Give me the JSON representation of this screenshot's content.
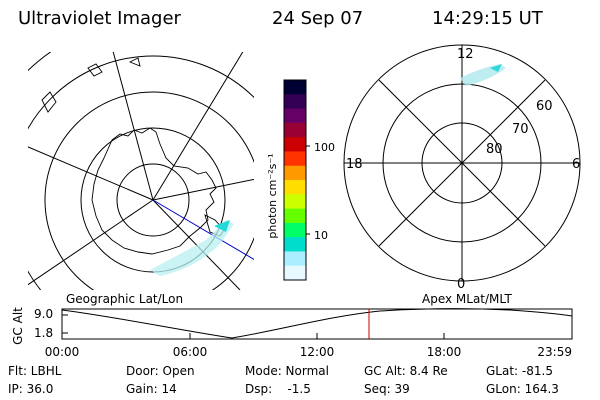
{
  "header": {
    "instrument": "Ultraviolet Imager",
    "date": "24 Sep 07",
    "time": "14:29:15 UT"
  },
  "colorbar": {
    "label": "photon cm⁻²s⁻¹",
    "ticks": [
      "100",
      "10"
    ],
    "scale": "log",
    "colors": [
      "#000033",
      "#330055",
      "#660066",
      "#990033",
      "#cc0000",
      "#ff3300",
      "#ff9900",
      "#ffdd00",
      "#ccff00",
      "#66ff00",
      "#00ff66",
      "#00ddcc",
      "#aaeeff",
      "#e8f8ff"
    ]
  },
  "polar_plot": {
    "mlt_labels": [
      "12",
      "18",
      "6",
      "0"
    ],
    "mlat_labels": [
      "60",
      "70",
      "80"
    ]
  },
  "projection_labels": {
    "left": "Geographic Lat/Lon",
    "right": "Apex MLat/MLT"
  },
  "orbit_chart": {
    "ylabel": "GC Alt",
    "yticks": [
      "9.0",
      "1.8"
    ],
    "xticks": [
      "00:00",
      "06:00",
      "12:00",
      "18:00",
      "23:59"
    ],
    "current_time_marker": "14:29:15"
  },
  "status": {
    "row1": [
      {
        "text": "Flt: LBHL"
      },
      {
        "text": "Door: Open"
      },
      {
        "text": "Mode: Normal"
      },
      {
        "text": "GC Alt: 8.4 Re"
      },
      {
        "text": "GLat: -81.5"
      }
    ],
    "row2": [
      {
        "text": "IP: 36.0"
      },
      {
        "text": "Gain: 14"
      },
      {
        "text": "Dsp:    -1.5"
      },
      {
        "text": "Seq: 39"
      },
      {
        "text": "GLon: 164.3"
      }
    ]
  }
}
